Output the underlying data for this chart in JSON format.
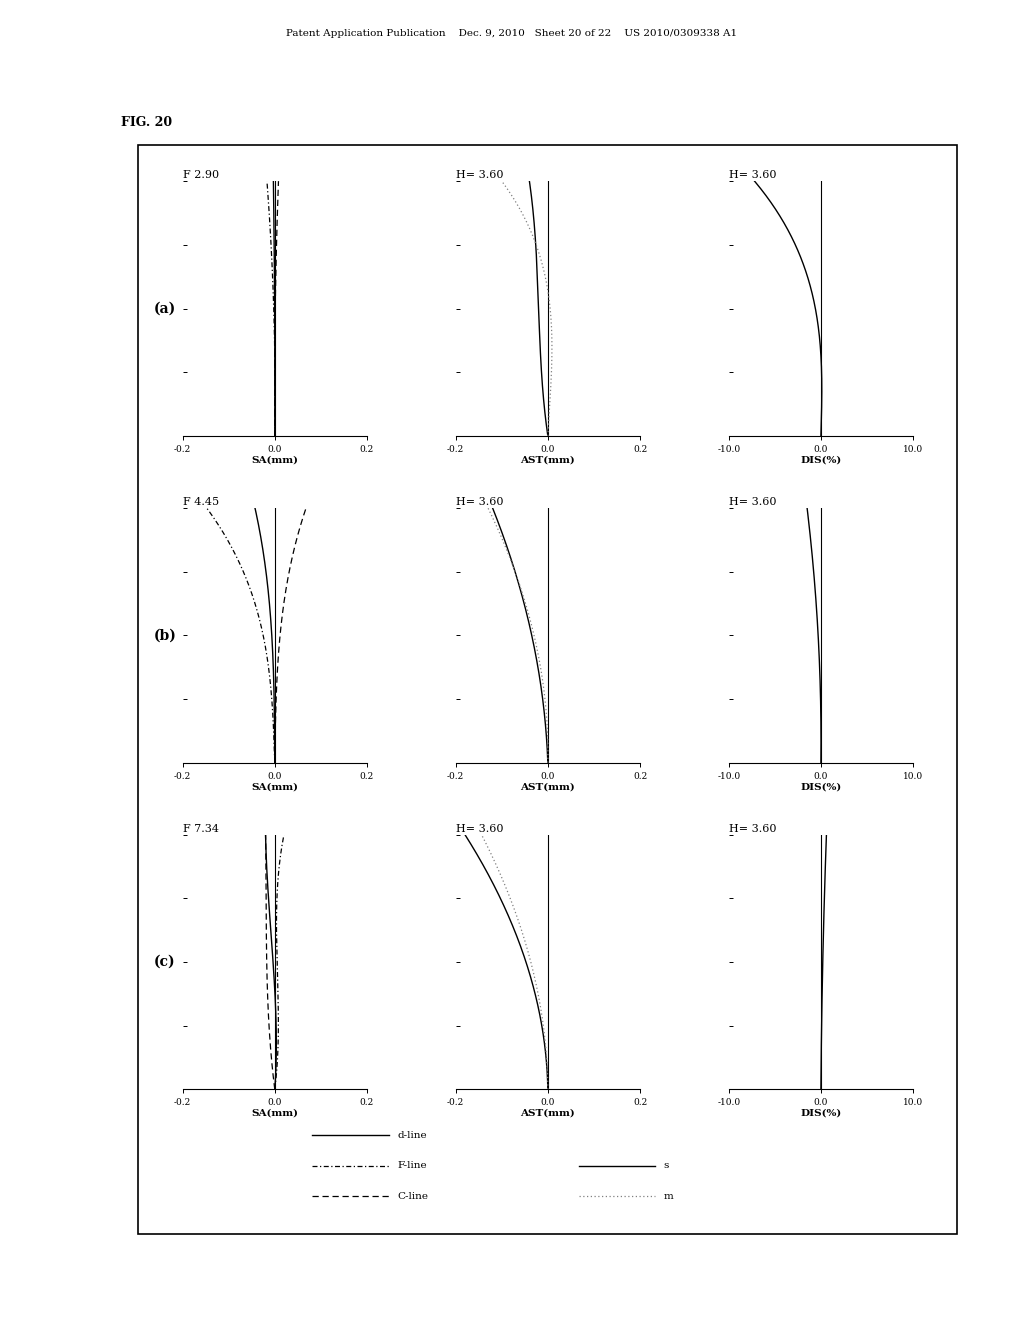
{
  "fig_label": "FIG. 20",
  "header_text": "Patent Application Publication    Dec. 9, 2010   Sheet 20 of 22    US 2010/0309338 A1",
  "rows": [
    {
      "label": "(a)",
      "sa_title": "F 2.90",
      "ast_title": "H= 3.60",
      "dis_title": "H= 3.60"
    },
    {
      "label": "(b)",
      "sa_title": "F 4.45",
      "ast_title": "H= 3.60",
      "dis_title": "H= 3.60"
    },
    {
      "label": "(c)",
      "sa_title": "F 7.34",
      "ast_title": "H= 3.60",
      "dis_title": "H= 3.60"
    }
  ],
  "ylim": [
    0.0,
    3.6
  ],
  "sa_xlim": [
    -0.2,
    0.2
  ],
  "ast_xlim": [
    -0.2,
    0.2
  ],
  "dis_xlim": [
    -10.0,
    10.0
  ],
  "background": "#ffffff"
}
